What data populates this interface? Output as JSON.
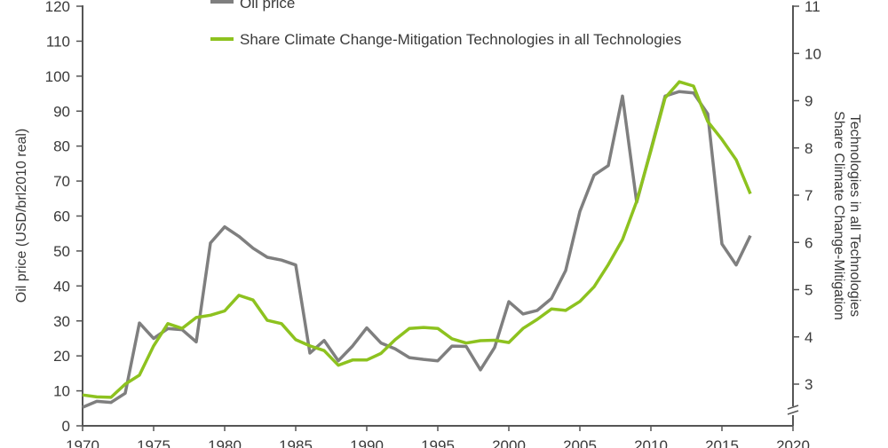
{
  "chart_data": {
    "type": "line",
    "title": "",
    "xlabel": "",
    "ylabel": "Oil price (USD/brl2010 real)",
    "y2label_line1": "Share Climate Change-Mitigation",
    "y2label_line2": "Technologies in all Technologies",
    "xlim": [
      1970,
      2020
    ],
    "ylim": [
      0,
      120
    ],
    "y2lim": [
      3,
      11
    ],
    "y2_axis_break": true,
    "grid": false,
    "legend_placement": "top-center",
    "x_ticks": [
      "1970",
      "1975",
      "1980",
      "1985",
      "1990",
      "1995",
      "2000",
      "2005",
      "2010",
      "2015",
      "2020"
    ],
    "y_ticks": [
      "0",
      "10",
      "20",
      "30",
      "40",
      "50",
      "60",
      "70",
      "80",
      "90",
      "100",
      "110",
      "120"
    ],
    "y2_ticks": [
      "3",
      "4",
      "5",
      "6",
      "7",
      "8",
      "9",
      "10",
      "11"
    ],
    "x": [
      1970,
      1971,
      1972,
      1973,
      1974,
      1975,
      1976,
      1977,
      1978,
      1979,
      1980,
      1981,
      1982,
      1983,
      1984,
      1985,
      1986,
      1987,
      1988,
      1989,
      1990,
      1991,
      1992,
      1993,
      1994,
      1995,
      1996,
      1997,
      1998,
      1999,
      2000,
      2001,
      2002,
      2003,
      2004,
      2005,
      2006,
      2007,
      2008,
      2009,
      2010,
      2011,
      2012,
      2013,
      2014,
      2015,
      2016,
      2017
    ],
    "series": [
      {
        "name": "Oil price",
        "axis": "left",
        "color": "#7f7f7f",
        "values": [
          5.3,
          7,
          6.7,
          9.3,
          29.4,
          25,
          27.8,
          27.5,
          24,
          52.3,
          56.9,
          54.2,
          50.8,
          48.2,
          47.4,
          46,
          20.8,
          24.4,
          18.6,
          22.8,
          28,
          23.7,
          22,
          19.5,
          19,
          18.6,
          22.8,
          22.7,
          16,
          22.4,
          35.5,
          32,
          33,
          36.4,
          44.4,
          61.3,
          71.7,
          74.4,
          94.3,
          63.9,
          79,
          94.3,
          95.6,
          95.2,
          89.2,
          52,
          46,
          54.4
        ]
      },
      {
        "name": "Share Climate Change-Mitigation Technologies in all Technologies",
        "axis": "right",
        "color": "#8dc21f",
        "values": [
          2.77,
          2.73,
          2.72,
          3.0,
          3.19,
          3.81,
          4.28,
          4.18,
          4.41,
          4.46,
          4.55,
          4.88,
          4.78,
          4.35,
          4.28,
          3.94,
          3.81,
          3.71,
          3.4,
          3.51,
          3.51,
          3.65,
          3.94,
          4.18,
          4.2,
          4.18,
          3.96,
          3.87,
          3.92,
          3.93,
          3.88,
          4.18,
          4.37,
          4.59,
          4.56,
          4.75,
          5.06,
          5.53,
          6.06,
          6.87,
          7.94,
          9.06,
          9.4,
          9.31,
          8.56,
          8.18,
          7.75,
          7.03
        ]
      }
    ]
  }
}
